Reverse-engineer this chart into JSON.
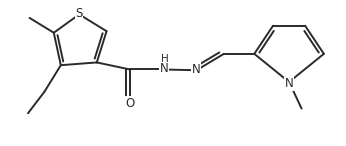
{
  "line_color": "#2a2a2a",
  "bg_color": "#ffffff",
  "line_width": 1.4,
  "font_size": 8.5,
  "figsize": [
    3.46,
    1.46
  ],
  "dpi": 100,
  "xlim": [
    0.0,
    8.5
  ],
  "ylim": [
    -0.5,
    3.2
  ]
}
